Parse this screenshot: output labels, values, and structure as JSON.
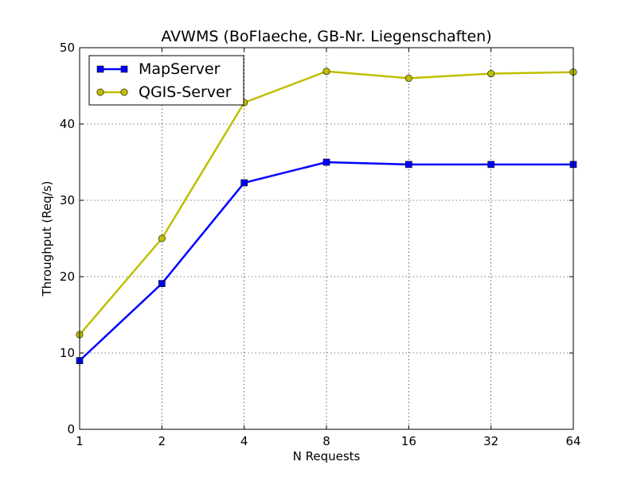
{
  "chart_data": {
    "type": "line",
    "title": "AVWMS (BoFlaeche, GB-Nr. Liegenschaften)",
    "xlabel": "N Requests",
    "ylabel": "Throughput (Req/s)",
    "x": [
      1,
      2,
      4,
      8,
      16,
      32,
      64
    ],
    "x_scale": "log2",
    "xticks": [
      "1",
      "2",
      "4",
      "8",
      "16",
      "32",
      "64"
    ],
    "ylim": [
      0,
      50
    ],
    "yticks": [
      "0",
      "10",
      "20",
      "30",
      "40",
      "50"
    ],
    "grid": true,
    "legend_position": "top-left",
    "series": [
      {
        "name": "MapServer",
        "color": "#0000ff",
        "marker": "square",
        "values": [
          9.0,
          19.1,
          32.3,
          35.0,
          34.7,
          34.7,
          34.7
        ]
      },
      {
        "name": "QGIS-Server",
        "color": "#bfbf00",
        "marker": "circle",
        "values": [
          12.4,
          25.0,
          42.8,
          46.9,
          46.0,
          46.6,
          46.8
        ]
      }
    ]
  }
}
